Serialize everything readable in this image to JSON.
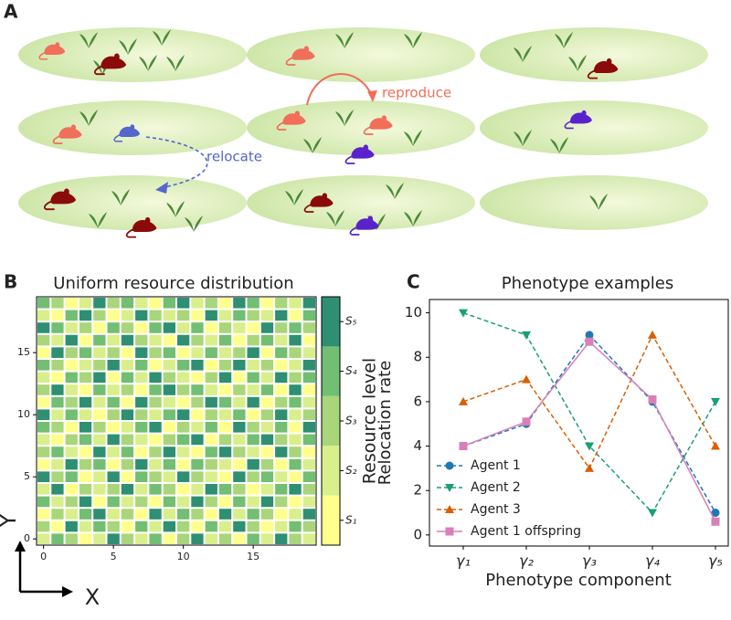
{
  "illustration": {
    "label": "A",
    "texts": [
      "reproduce",
      "relocate"
    ]
  },
  "chart_data": [
    {
      "type": "heatmap",
      "panel_label": "B",
      "title": "Uniform resource distribution",
      "x_label": "X",
      "y_label": "Y",
      "xlim": [
        -0.5,
        19.5
      ],
      "ylim": [
        -0.5,
        19.5
      ],
      "xticks": [
        0,
        5,
        10,
        15
      ],
      "yticks": [
        0,
        5,
        10,
        15
      ],
      "colors": [
        "#ffff8c",
        "#d9ef8b",
        "#a9d67a",
        "#72be73",
        "#2e8f72"
      ],
      "colorbar_label": "Resource level",
      "clim": [
        0.5,
        5.5
      ],
      "colorbar_ticks": [
        {
          "value": 1,
          "label": "S₁"
        },
        {
          "value": 2,
          "label": "S₂"
        },
        {
          "value": 3,
          "label": "S₃"
        },
        {
          "value": 4,
          "label": "S₄"
        },
        {
          "value": 5,
          "label": "S₅"
        }
      ],
      "z": [
        [
          2,
          4,
          3,
          1,
          2,
          5,
          3,
          2,
          4,
          1,
          3,
          5,
          2,
          3,
          1,
          4,
          2,
          5,
          3,
          2
        ],
        [
          3,
          1,
          5,
          2,
          4,
          3,
          1,
          4,
          2,
          5,
          3,
          1,
          4,
          2,
          5,
          3,
          1,
          2,
          4,
          3
        ],
        [
          1,
          3,
          2,
          4,
          5,
          2,
          3,
          1,
          5,
          2,
          4,
          3,
          1,
          5,
          2,
          4,
          3,
          1,
          2,
          5
        ],
        [
          4,
          2,
          3,
          5,
          1,
          4,
          2,
          3,
          1,
          4,
          2,
          5,
          3,
          1,
          4,
          2,
          5,
          3,
          1,
          2
        ],
        [
          2,
          5,
          1,
          3,
          2,
          3,
          5,
          2,
          4,
          3,
          1,
          2,
          5,
          4,
          3,
          1,
          2,
          4,
          5,
          3
        ],
        [
          5,
          3,
          4,
          1,
          2,
          5,
          1,
          4,
          3,
          2,
          5,
          3,
          2,
          1,
          5,
          3,
          4,
          2,
          1,
          4
        ],
        [
          1,
          2,
          5,
          3,
          4,
          1,
          3,
          5,
          2,
          4,
          1,
          4,
          3,
          2,
          1,
          5,
          3,
          1,
          4,
          2
        ],
        [
          3,
          4,
          2,
          1,
          5,
          2,
          4,
          1,
          3,
          5,
          2,
          1,
          4,
          5,
          3,
          2,
          1,
          5,
          3,
          1
        ],
        [
          2,
          1,
          3,
          4,
          2,
          5,
          3,
          2,
          1,
          3,
          4,
          5,
          1,
          3,
          2,
          4,
          5,
          3,
          2,
          4
        ],
        [
          4,
          3,
          1,
          5,
          3,
          1,
          2,
          4,
          5,
          1,
          3,
          2,
          4,
          1,
          5,
          3,
          2,
          4,
          1,
          5
        ],
        [
          5,
          2,
          4,
          2,
          1,
          3,
          5,
          3,
          2,
          4,
          5,
          1,
          3,
          2,
          4,
          1,
          3,
          5,
          2,
          3
        ],
        [
          1,
          4,
          3,
          5,
          2,
          4,
          1,
          5,
          3,
          2,
          1,
          3,
          5,
          4,
          2,
          5,
          1,
          3,
          4,
          2
        ],
        [
          3,
          5,
          2,
          1,
          4,
          2,
          3,
          1,
          4,
          5,
          3,
          4,
          2,
          1,
          3,
          2,
          4,
          1,
          5,
          1
        ],
        [
          2,
          1,
          4,
          3,
          5,
          1,
          4,
          2,
          5,
          3,
          2,
          1,
          3,
          5,
          1,
          4,
          2,
          5,
          3,
          4
        ],
        [
          4,
          3,
          1,
          2,
          3,
          5,
          2,
          4,
          1,
          2,
          4,
          5,
          1,
          3,
          5,
          2,
          3,
          1,
          2,
          5
        ],
        [
          1,
          5,
          3,
          4,
          2,
          3,
          1,
          5,
          3,
          4,
          1,
          2,
          4,
          2,
          3,
          5,
          1,
          4,
          3,
          2
        ],
        [
          3,
          2,
          5,
          1,
          4,
          2,
          5,
          3,
          2,
          1,
          5,
          3,
          2,
          4,
          1,
          3,
          4,
          2,
          5,
          1
        ],
        [
          5,
          4,
          2,
          3,
          1,
          4,
          3,
          1,
          4,
          5,
          2,
          4,
          1,
          3,
          2,
          1,
          5,
          3,
          4,
          3
        ],
        [
          2,
          1,
          4,
          5,
          3,
          1,
          2,
          5,
          3,
          2,
          3,
          1,
          5,
          2,
          4,
          3,
          2,
          5,
          1,
          4
        ],
        [
          4,
          3,
          1,
          2,
          5,
          3,
          4,
          2,
          1,
          4,
          5,
          2,
          3,
          1,
          5,
          4,
          1,
          3,
          2,
          5
        ]
      ]
    },
    {
      "type": "line",
      "panel_label": "C",
      "title": "Phenotype examples",
      "x_label": "Phenotype component",
      "y_label": "Relocation rate",
      "categories": [
        "γ₁",
        "γ₂",
        "γ₃",
        "γ₄",
        "γ₅"
      ],
      "ylim": [
        -0.5,
        10.6
      ],
      "yticks": [
        0,
        2,
        4,
        6,
        8,
        10
      ],
      "legend": "lower left",
      "series": [
        {
          "name": "Agent 1",
          "color": "#1f77b4",
          "marker": "circle",
          "linestyle": "dashed",
          "values": [
            4,
            5,
            9,
            6,
            1
          ]
        },
        {
          "name": "Agent 2",
          "color": "#1b9e77",
          "marker": "triangle-down",
          "linestyle": "dashed",
          "values": [
            10,
            9,
            4,
            1,
            6
          ]
        },
        {
          "name": "Agent 3",
          "color": "#d95f02",
          "marker": "triangle-up",
          "linestyle": "dashed",
          "values": [
            6,
            7,
            3,
            9,
            4
          ]
        },
        {
          "name": "Agent 1 offspring",
          "color": "#d97fb8",
          "marker": "square",
          "linestyle": "solid",
          "values": [
            4,
            5.1,
            8.7,
            6.1,
            0.6
          ]
        }
      ]
    }
  ]
}
